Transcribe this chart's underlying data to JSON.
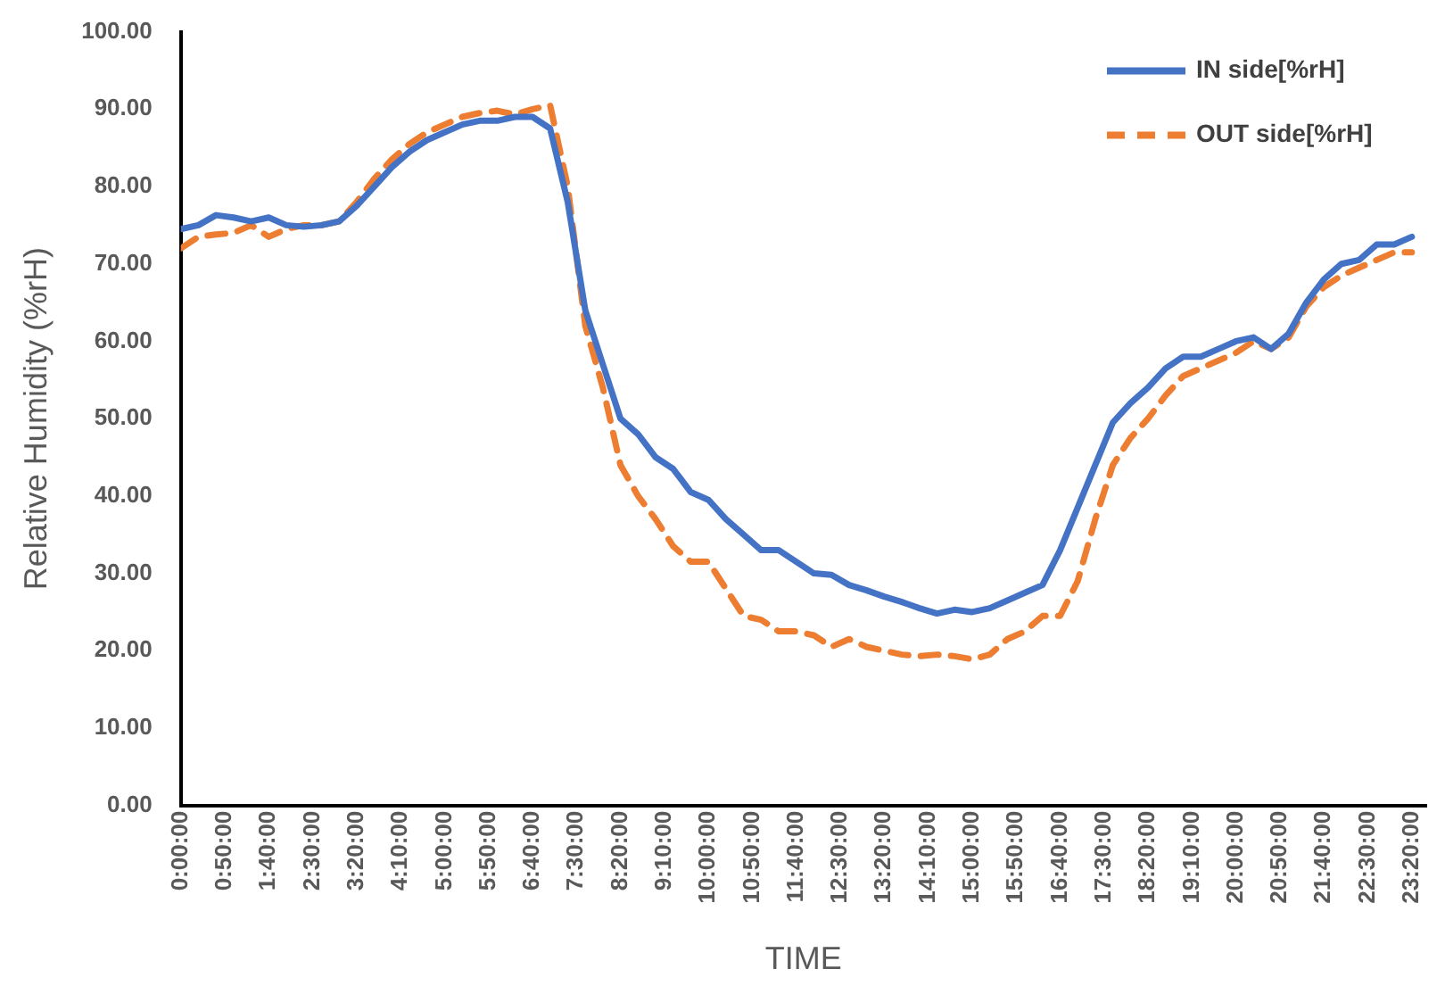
{
  "chart_data": {
    "type": "line",
    "xlabel": "TIME",
    "ylabel": "Relative Humidity (%rH)",
    "x": [
      0,
      0.333333,
      0.666667,
      1,
      1.333333,
      1.666667,
      2,
      2.333333,
      2.666667,
      3,
      3.333333,
      3.666667,
      4,
      4.333333,
      4.666667,
      5,
      5.333333,
      5.666667,
      6,
      6.333333,
      6.666667,
      7,
      7.333333,
      7.666667,
      8,
      8.333333,
      8.666667,
      9,
      9.333333,
      9.666667,
      10,
      10.333333,
      10.666667,
      11,
      11.333333,
      11.666667,
      12,
      12.333333,
      12.666667,
      13,
      13.333333,
      13.666667,
      14,
      14.333333,
      14.666667,
      15,
      15.333333,
      15.666667,
      16,
      16.333333,
      16.666667,
      17,
      17.333333,
      17.666667,
      18,
      18.333333,
      18.666667,
      19,
      19.333333,
      19.666667,
      20,
      20.333333,
      20.666667,
      21,
      21.333333,
      21.666667,
      22,
      22.333333,
      22.666667,
      23,
      23.333333
    ],
    "series": [
      {
        "name": "IN side[%rH]",
        "color": "#4472c4",
        "line_style": "solid",
        "values": [
          74.5,
          75,
          76.3,
          76,
          75.5,
          76,
          75,
          74.8,
          75,
          75.5,
          77.5,
          80,
          82.5,
          84.5,
          86,
          87,
          88,
          88.5,
          88.5,
          89,
          89,
          87.5,
          78,
          64,
          57,
          50,
          48,
          45,
          43.5,
          40.5,
          39.5,
          37,
          35,
          33,
          33,
          31.5,
          30,
          29.8,
          28.5,
          27.8,
          27,
          26.3,
          25.5,
          24.8,
          25.3,
          25,
          25.5,
          26.5,
          27.5,
          28.5,
          33,
          38.5,
          44,
          49.5,
          52,
          54,
          56.5,
          58,
          58,
          59,
          60,
          60.5,
          59,
          61,
          65,
          68,
          70,
          70.5,
          72.5,
          72.5,
          73.5
        ]
      },
      {
        "name": "OUT side[%rH]",
        "color": "#ed7d31",
        "line_style": "dashed",
        "values": [
          72,
          73.5,
          73.8,
          74,
          75,
          73.5,
          74.5,
          75,
          75,
          75.5,
          78,
          81,
          83.5,
          85.5,
          87,
          88,
          89,
          89.5,
          89.8,
          89.3,
          90,
          90.5,
          80,
          62,
          54,
          44,
          40,
          37,
          33.5,
          31.5,
          31.5,
          28,
          24.5,
          24,
          22.5,
          22.5,
          22,
          20.5,
          21.5,
          20.5,
          20,
          19.5,
          19.3,
          19.5,
          19.3,
          18.9,
          19.5,
          21.5,
          22.5,
          24.5,
          24.5,
          29,
          37,
          44,
          47.5,
          50,
          53,
          55.5,
          56.5,
          57.5,
          58.5,
          60,
          59,
          60.5,
          64.5,
          67,
          68.5,
          69.5,
          70.5,
          71.5,
          71.5
        ]
      }
    ],
    "xlim": [
      0,
      23.6
    ],
    "xticks": [
      {
        "value": 0,
        "label": "0:00:00"
      },
      {
        "value": 0.833333,
        "label": "0:50:00"
      },
      {
        "value": 1.666667,
        "label": "1:40:00"
      },
      {
        "value": 2.5,
        "label": "2:30:00"
      },
      {
        "value": 3.333333,
        "label": "3:20:00"
      },
      {
        "value": 4.166667,
        "label": "4:10:00"
      },
      {
        "value": 5,
        "label": "5:00:00"
      },
      {
        "value": 5.833333,
        "label": "5:50:00"
      },
      {
        "value": 6.666667,
        "label": "6:40:00"
      },
      {
        "value": 7.5,
        "label": "7:30:00"
      },
      {
        "value": 8.333333,
        "label": "8:20:00"
      },
      {
        "value": 9.166667,
        "label": "9:10:00"
      },
      {
        "value": 10,
        "label": "10:00:00"
      },
      {
        "value": 10.833333,
        "label": "10:50:00"
      },
      {
        "value": 11.666667,
        "label": "11:40:00"
      },
      {
        "value": 12.5,
        "label": "12:30:00"
      },
      {
        "value": 13.333333,
        "label": "13:20:00"
      },
      {
        "value": 14.166667,
        "label": "14:10:00"
      },
      {
        "value": 15,
        "label": "15:00:00"
      },
      {
        "value": 15.833333,
        "label": "15:50:00"
      },
      {
        "value": 16.666667,
        "label": "16:40:00"
      },
      {
        "value": 17.5,
        "label": "17:30:00"
      },
      {
        "value": 18.333333,
        "label": "18:20:00"
      },
      {
        "value": 19.166667,
        "label": "19:10:00"
      },
      {
        "value": 20,
        "label": "20:00:00"
      },
      {
        "value": 20.833333,
        "label": "20:50:00"
      },
      {
        "value": 21.666667,
        "label": "21:40:00"
      },
      {
        "value": 22.5,
        "label": "22:30:00"
      },
      {
        "value": 23.333333,
        "label": "23:20:00"
      }
    ],
    "ylim": [
      0,
      100
    ],
    "yticks": [
      {
        "value": 0,
        "label": "0.00"
      },
      {
        "value": 10,
        "label": "10.00"
      },
      {
        "value": 20,
        "label": "20.00"
      },
      {
        "value": 30,
        "label": "30.00"
      },
      {
        "value": 40,
        "label": "40.00"
      },
      {
        "value": 50,
        "label": "50.00"
      },
      {
        "value": 60,
        "label": "60.00"
      },
      {
        "value": 70,
        "label": "70.00"
      },
      {
        "value": 80,
        "label": "80.00"
      },
      {
        "value": 90,
        "label": "90.00"
      },
      {
        "value": 100,
        "label": "100.00"
      }
    ],
    "grid": false,
    "legend": "top right",
    "marker": "none"
  }
}
